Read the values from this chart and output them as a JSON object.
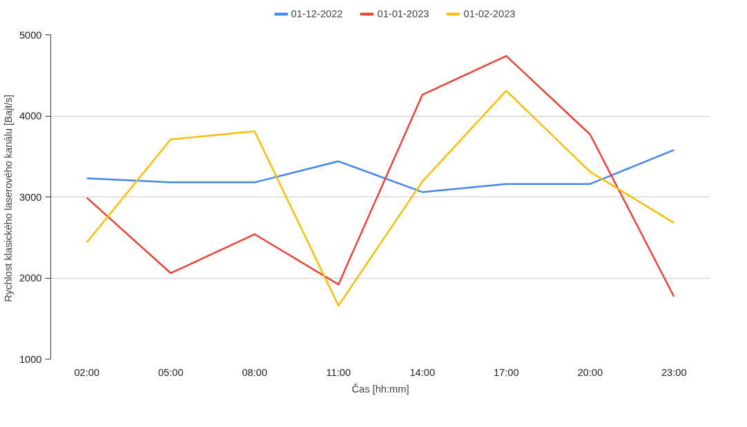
{
  "chart_data": {
    "type": "line",
    "xlabel": "Čas [hh:mm]",
    "ylabel": "Rychlost klasického laserového kanálu  [Bajt/s]",
    "categories": [
      "02:00",
      "05:00",
      "08:00",
      "11:00",
      "14:00",
      "17:00",
      "20:00",
      "23:00"
    ],
    "series": [
      {
        "name": "01-12-2022",
        "color": "#4285f4",
        "values": [
          3230,
          3180,
          3180,
          3440,
          3060,
          3160,
          3160,
          3580
        ]
      },
      {
        "name": "01-01-2023",
        "color": "#ea4335",
        "values": [
          2990,
          2060,
          2540,
          1920,
          4260,
          4740,
          3770,
          1770
        ]
      },
      {
        "name": "01-02-2023",
        "color": "#fbbc04",
        "values": [
          2440,
          3710,
          3810,
          1660,
          3190,
          4310,
          3310,
          2680
        ]
      }
    ],
    "ylim": [
      1000,
      5000
    ],
    "yticks": [
      1000,
      2000,
      3000,
      4000,
      5000
    ],
    "grid": "y",
    "legend": "top",
    "marker": "none",
    "line_style": "solid"
  }
}
